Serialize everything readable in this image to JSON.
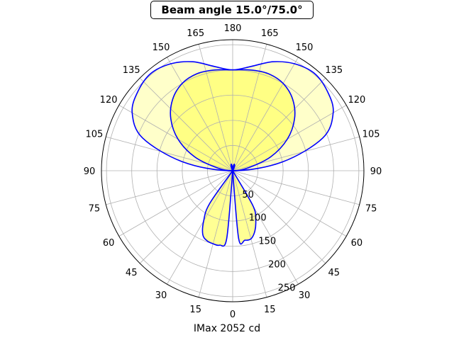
{
  "chart_data": {
    "type": "polar-line",
    "title": "Beam angle 15.0°/75.0°",
    "xlabel": "IMax 2052 cd",
    "angle_ticks": {
      "left": [
        "180",
        "165",
        "150",
        "135",
        "120",
        "105",
        "90",
        "75",
        "60",
        "45",
        "30",
        "15",
        "0"
      ],
      "right": [
        "180",
        "165",
        "150",
        "135",
        "120",
        "105",
        "90",
        "75",
        "60",
        "45",
        "30",
        "15",
        "0"
      ]
    },
    "radial_ticks": [
      "50",
      "100",
      "150",
      "200",
      "250"
    ],
    "rlim": [
      0,
      260
    ],
    "grid": true,
    "colors": {
      "line": "#0000ff",
      "fill": "#ffff66",
      "grid": "#b0b0b0"
    },
    "series": [
      {
        "plane": "outer",
        "fill_opacity": 0.35,
        "angles_deg": [
          0,
          15,
          30,
          45,
          60,
          75,
          90,
          100,
          110,
          120,
          130,
          140,
          150,
          160,
          170,
          180
        ],
        "intensity": [
          0,
          0,
          0,
          0,
          0,
          0,
          0,
          100,
          190,
          230,
          245,
          252,
          245,
          230,
          210,
          200
        ]
      },
      {
        "plane": "inner",
        "fill_opacity": 0.7,
        "angles_deg": [
          0,
          15,
          30,
          45,
          60,
          75,
          90,
          100,
          110,
          120,
          130,
          140,
          150,
          160,
          170,
          180
        ],
        "intensity": [
          0,
          0,
          0,
          0,
          0,
          0,
          0,
          30,
          80,
          125,
          160,
          185,
          200,
          205,
          203,
          200
        ]
      },
      {
        "plane": "lower-left",
        "fill_opacity": 0.7,
        "angles_deg": [
          0,
          5,
          10,
          15,
          20,
          25,
          30,
          35,
          40
        ],
        "intensity": [
          0,
          135,
          150,
          150,
          148,
          140,
          115,
          80,
          0
        ]
      },
      {
        "plane": "lower-right",
        "fill_opacity": 0.7,
        "angles_deg": [
          0,
          5,
          10,
          15,
          20,
          25,
          30,
          35
        ],
        "intensity": [
          0,
          135,
          140,
          140,
          128,
          108,
          80,
          0
        ]
      }
    ]
  }
}
